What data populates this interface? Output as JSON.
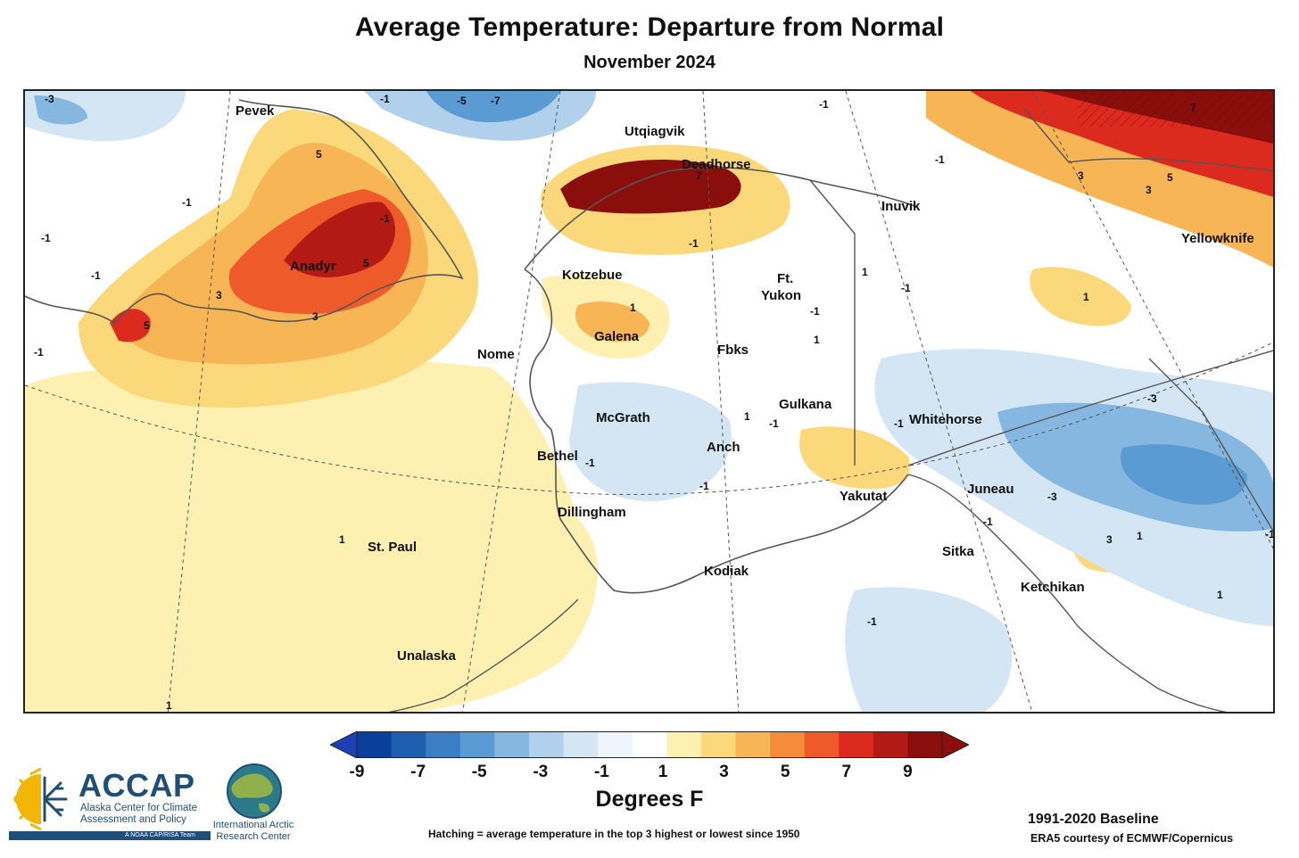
{
  "header": {
    "title": "Average Temperature: Departure from Normal",
    "subtitle": "November 2024"
  },
  "map": {
    "places": [
      {
        "name": "Pevek"
      },
      {
        "name": "Utqiagvik"
      },
      {
        "name": "Deadhorse"
      },
      {
        "name": "Inuvik"
      },
      {
        "name": "Yellowknife"
      },
      {
        "name": "Anadyr"
      },
      {
        "name": "Kotzebue"
      },
      {
        "name": "Ft."
      },
      {
        "name": "Yukon"
      },
      {
        "name": "Galena"
      },
      {
        "name": "Nome"
      },
      {
        "name": "Fbks"
      },
      {
        "name": "Gulkana"
      },
      {
        "name": "McGrath"
      },
      {
        "name": "Whitehorse"
      },
      {
        "name": "Anch"
      },
      {
        "name": "Bethel"
      },
      {
        "name": "Yakutat"
      },
      {
        "name": "Juneau"
      },
      {
        "name": "Dillingham"
      },
      {
        "name": "St. Paul"
      },
      {
        "name": "Sitka"
      },
      {
        "name": "Kodiak"
      },
      {
        "name": "Ketchikan"
      },
      {
        "name": "Unalaska"
      }
    ],
    "contour_labels": [
      "-3",
      "-1",
      "-5",
      "-7",
      "5",
      "-1",
      "7",
      "-1",
      "-1",
      "7",
      "3",
      "5",
      "3",
      "-1",
      "-1",
      "-1",
      "5",
      "3",
      "5",
      "3",
      "-1",
      "1",
      "1",
      "1",
      "-1",
      "1",
      "-1",
      "1",
      "-1",
      "-1",
      "-3",
      "1",
      "-1",
      "-3",
      "1",
      "-1",
      "-1",
      "3",
      "1",
      "1",
      "-1",
      "-1",
      "-1"
    ]
  },
  "legend": {
    "ticks": [
      "-9",
      "-7",
      "-5",
      "-3",
      "-1",
      "1",
      "3",
      "5",
      "7",
      "9"
    ],
    "colors": [
      "#0a3f9c",
      "#1f5fb0",
      "#3a7ec4",
      "#5b9bd3",
      "#85b7e0",
      "#b0d0ec",
      "#d4e5f4",
      "#eef4fb",
      "#ffffff",
      "#fdf0b0",
      "#fbd97a",
      "#f8b555",
      "#f48c3a",
      "#ef5a2a",
      "#dd2a1e",
      "#b41a15",
      "#8a0f0c"
    ],
    "low_arrow_color": "#1b3fb5",
    "high_arrow_color": "#8a0f0c",
    "label": "Degrees F"
  },
  "notes": {
    "hatching": "Hatching = average temperature in the top 3 highest or lowest since 1950",
    "baseline": "1991-2020 Baseline",
    "credit": "ERA5 courtesy of ECMWF/Copernicus"
  },
  "logos": {
    "accap_name": "ACCAP",
    "accap_line1": "Alaska Center for Climate",
    "accap_line2": "Assessment and Policy",
    "accap_bar": "A NOAA CAP/RISA Team",
    "iarc_line1": "International Arctic",
    "iarc_line2": "Research Center"
  }
}
